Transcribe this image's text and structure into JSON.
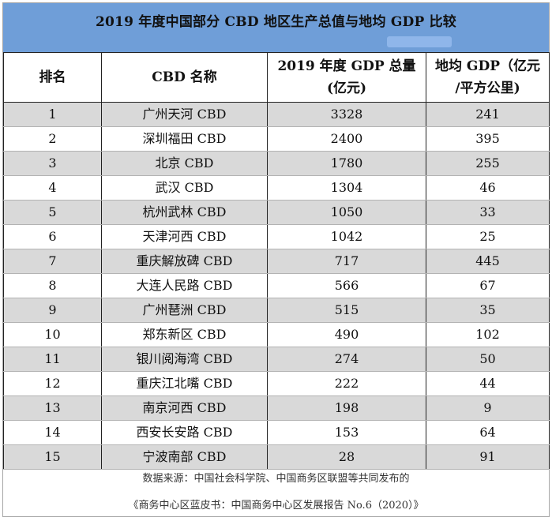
{
  "title": "2019 年度中国部分 CBD 地区生产总值与地均 GDP 比较",
  "headers": {
    "rank": "排名",
    "name": "CBD 名称",
    "gdp_line1": "2019 年度 GDP 总量",
    "gdp_line2": "(亿元)",
    "density_line1": "地均 GDP（亿元",
    "density_line2": "/平方公里)"
  },
  "rows": [
    {
      "rank": "1",
      "name": "广州天河 CBD",
      "gdp": "3328",
      "density": "241"
    },
    {
      "rank": "2",
      "name": "深圳福田 CBD",
      "gdp": "2400",
      "density": "395"
    },
    {
      "rank": "3",
      "name": "北京 CBD",
      "gdp": "1780",
      "density": "255"
    },
    {
      "rank": "4",
      "name": "武汉 CBD",
      "gdp": "1304",
      "density": "46"
    },
    {
      "rank": "5",
      "name": "杭州武林 CBD",
      "gdp": "1050",
      "density": "33"
    },
    {
      "rank": "6",
      "name": "天津河西 CBD",
      "gdp": "1042",
      "density": "25"
    },
    {
      "rank": "7",
      "name": "重庆解放碑 CBD",
      "gdp": "717",
      "density": "445"
    },
    {
      "rank": "8",
      "name": "大连人民路 CBD",
      "gdp": "566",
      "density": "67"
    },
    {
      "rank": "9",
      "name": "广州琶洲 CBD",
      "gdp": "515",
      "density": "35"
    },
    {
      "rank": "10",
      "name": "郑东新区 CBD",
      "gdp": "490",
      "density": "102"
    },
    {
      "rank": "11",
      "name": "银川阅海湾 CBD",
      "gdp": "274",
      "density": "50"
    },
    {
      "rank": "12",
      "name": "重庆江北嘴 CBD",
      "gdp": "222",
      "density": "44"
    },
    {
      "rank": "13",
      "name": "南京河西 CBD",
      "gdp": "198",
      "density": "9"
    },
    {
      "rank": "14",
      "name": "西安长安路 CBD",
      "gdp": "153",
      "density": "64"
    },
    {
      "rank": "15",
      "name": "宁波南部 CBD",
      "gdp": "28",
      "density": "91"
    }
  ],
  "footer": {
    "line1": "数据来源：中国社会科学院、中国商务区联盟等共同发布的",
    "line2": "《商务中心区蓝皮书：中国商务中心区发展报告 No.6（2020）》"
  },
  "colors": {
    "title_bg": "#6f9ed8",
    "row_shaded": "#d9d9d9",
    "row_plain": "#ffffff"
  }
}
